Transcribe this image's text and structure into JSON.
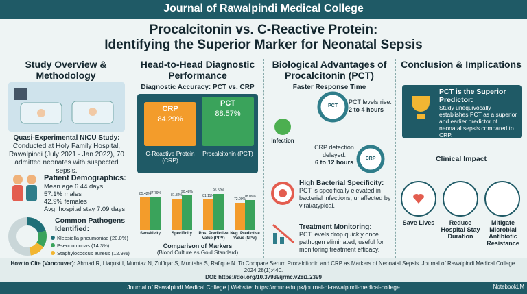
{
  "header": {
    "journal": "Journal of Rawalpindi Medical College",
    "title": [
      "Procalcitonin vs. C-Reactive Protein:",
      "Identifying the Superior Marker for Neonatal Sepsis"
    ]
  },
  "overview": {
    "heading": "Study Overview & Methodology",
    "study_label": "Quasi-Experimental NICU Study:",
    "study_text": "Conducted at Holy Family Hospital, Rawalpindi (July 2021 - Jan 2022), 70 admitted neonates with suspected sepsis.",
    "demographics": {
      "label": "Patient Demographics:",
      "items": [
        "Mean age 6.44 days",
        "57.1% males",
        "42.9% females",
        "Avg. hospital stay 7.09 days"
      ]
    },
    "pathogens": {
      "label": "Common Pathogens Identified:",
      "items": [
        {
          "label": "Klebsiella pneumoniae (20.0%)",
          "value": 20.0,
          "color": "#1f6f78"
        },
        {
          "label": "Pseudomonas (14.3%)",
          "value": 14.3,
          "color": "#3aa35b"
        },
        {
          "label": "Staphylococcus aureus (12.9%)",
          "value": 12.9,
          "color": "#f2b632"
        }
      ]
    }
  },
  "performance": {
    "heading": "Head-to-Head Diagnostic Performance",
    "accuracy": {
      "title": "Diagnostic Accuracy: PCT vs. CRP",
      "items": [
        {
          "abbr": "CRP",
          "value_label": "84.29%",
          "name": "C-Reactive Protein (CRP)",
          "color": "#f39c2b"
        },
        {
          "abbr": "PCT",
          "value_label": "88.57%",
          "name": "Procalcitonin (PCT)",
          "color": "#3aa35b"
        }
      ]
    },
    "chart_data": {
      "type": "bar",
      "title": "Comparison of Markers",
      "subtitle": "(Blood Culture as Gold Standard)",
      "categories": [
        "Sensitivity",
        "Specificity",
        "Pos. Predictive Value (PPV)",
        "Neg. Predictive Value (NPV)"
      ],
      "series": [
        {
          "color": "#f39c2b",
          "values": [
            85.42,
            81.82,
            81.11,
            72.0
          ],
          "value_labels": [
            "85.42%",
            "81.82%",
            "81.11%",
            "72.00%"
          ]
        },
        {
          "color": "#3aa35b",
          "values": [
            87.79,
            90.48,
            95.5,
            78.09
          ],
          "value_labels": [
            "87.79%",
            "90.48%",
            "95.50%",
            "78.09%"
          ]
        }
      ],
      "ylim": [
        0,
        100
      ]
    }
  },
  "advantages": {
    "heading": "Biological Advantages of Procalcitonin (PCT)",
    "response": {
      "title": "Faster Response Time",
      "pct_label": "PCT levels rise:",
      "pct_time": "2 to 4 hours",
      "pct_gauge": "PCT",
      "infection": "Infection",
      "crp_label": "CRP detection delayed:",
      "crp_time": "6 to 12 hours",
      "crp_gauge": "CRP"
    },
    "specificity": {
      "label": "High Bacterial Specificity:",
      "text": "PCT is specifically elevated in bacterial infections, unaffected by viral/atypical."
    },
    "monitoring": {
      "label": "Treatment Monitoring:",
      "text": "PCT levels drop quickly once pathogen eliminated; useful for monitoring treatment efficacy."
    }
  },
  "conclusion": {
    "heading": "Conclusion & Implications",
    "box_label": "PCT is the Superior Predictor:",
    "box_text": "Study unequivocally establishes PCT as a superior and earlier predictor of neonatal sepsis compared to CRP.",
    "impact_title": "Clinical Impact",
    "impacts": [
      "Save Lives",
      "Reduce Hospital Stay Duration",
      "Mitigate Microbial Antibiotic Resistance"
    ]
  },
  "citation": {
    "label": "How to Cite (Vancouver):",
    "text": "Ahmad R, Liaqust I, Mumtaz N, Zulfiqar S, Muntaha S, Rafique N. To Compare Serum Procalcitonin and CRP as Markers of Neonatal Sepsis. Journal of Rawalpindi Medical College. 2024;28(1):440.",
    "doi": "DOI: https://doi.org/10.37939/jrmc.v28i1.2399"
  },
  "footer": {
    "text": "Journal of Rawalpindi Medical College | Website: https://rmur.edu.pk/journal-of-rawalpindi-medical-college",
    "brand": "NotebookLM"
  }
}
